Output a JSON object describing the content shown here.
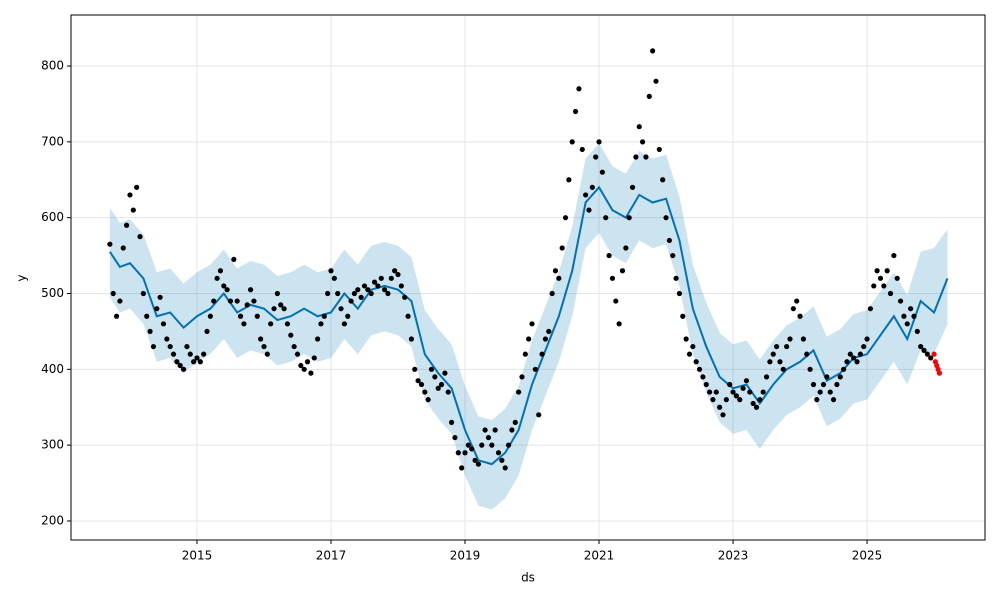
{
  "chart_data": {
    "type": "forecast",
    "xlabel": "ds",
    "ylabel": "y",
    "xlim": [
      2013.12,
      2026.76
    ],
    "ylim": [
      174.9,
      867.3
    ],
    "xticks": [
      2015,
      2017,
      2019,
      2021,
      2023,
      2025
    ],
    "yticks": [
      200,
      300,
      400,
      500,
      600,
      700,
      800
    ],
    "grid": true,
    "observed": {
      "color": "#000000",
      "x": [
        2013.7,
        2013.75,
        2013.8,
        2013.85,
        2013.9,
        2013.95,
        2014.0,
        2014.05,
        2014.1,
        2014.15,
        2014.2,
        2014.25,
        2014.3,
        2014.35,
        2014.4,
        2014.45,
        2014.5,
        2014.55,
        2014.6,
        2014.65,
        2014.7,
        2014.75,
        2014.8,
        2014.85,
        2014.9,
        2014.95,
        2015.0,
        2015.05,
        2015.1,
        2015.15,
        2015.2,
        2015.25,
        2015.3,
        2015.35,
        2015.4,
        2015.45,
        2015.5,
        2015.55,
        2015.6,
        2015.65,
        2015.7,
        2015.75,
        2015.8,
        2015.85,
        2015.9,
        2015.95,
        2016.0,
        2016.05,
        2016.1,
        2016.15,
        2016.2,
        2016.25,
        2016.3,
        2016.35,
        2016.4,
        2016.45,
        2016.5,
        2016.55,
        2016.6,
        2016.65,
        2016.7,
        2016.75,
        2016.8,
        2016.85,
        2016.9,
        2016.95,
        2017.0,
        2017.05,
        2017.1,
        2017.15,
        2017.2,
        2017.25,
        2017.3,
        2017.35,
        2017.4,
        2017.45,
        2017.5,
        2017.55,
        2017.6,
        2017.65,
        2017.7,
        2017.75,
        2017.8,
        2017.85,
        2017.9,
        2017.95,
        2018.0,
        2018.05,
        2018.1,
        2018.15,
        2018.2,
        2018.25,
        2018.3,
        2018.35,
        2018.4,
        2018.45,
        2018.5,
        2018.55,
        2018.6,
        2018.65,
        2018.7,
        2018.75,
        2018.8,
        2018.85,
        2018.9,
        2018.95,
        2019.0,
        2019.05,
        2019.1,
        2019.15,
        2019.2,
        2019.25,
        2019.3,
        2019.35,
        2019.4,
        2019.45,
        2019.5,
        2019.55,
        2019.6,
        2019.65,
        2019.7,
        2019.75,
        2019.8,
        2019.85,
        2019.9,
        2019.95,
        2020.0,
        2020.05,
        2020.1,
        2020.15,
        2020.2,
        2020.25,
        2020.3,
        2020.35,
        2020.4,
        2020.45,
        2020.5,
        2020.55,
        2020.6,
        2020.65,
        2020.7,
        2020.75,
        2020.8,
        2020.85,
        2020.9,
        2020.95,
        2021.0,
        2021.05,
        2021.1,
        2021.15,
        2021.2,
        2021.25,
        2021.3,
        2021.35,
        2021.4,
        2021.45,
        2021.5,
        2021.55,
        2021.6,
        2021.65,
        2021.7,
        2021.75,
        2021.8,
        2021.85,
        2021.9,
        2021.95,
        2022.0,
        2022.05,
        2022.1,
        2022.15,
        2022.2,
        2022.25,
        2022.3,
        2022.35,
        2022.4,
        2022.45,
        2022.5,
        2022.55,
        2022.6,
        2022.65,
        2022.7,
        2022.75,
        2022.8,
        2022.85,
        2022.9,
        2022.95,
        2023.0,
        2023.05,
        2023.1,
        2023.15,
        2023.2,
        2023.25,
        2023.3,
        2023.35,
        2023.4,
        2023.45,
        2023.5,
        2023.55,
        2023.6,
        2023.65,
        2023.7,
        2023.75,
        2023.8,
        2023.85,
        2023.9,
        2023.95,
        2024.0,
        2024.05,
        2024.1,
        2024.15,
        2024.2,
        2024.25,
        2024.3,
        2024.35,
        2024.4,
        2024.45,
        2024.5,
        2024.55,
        2024.6,
        2024.65,
        2024.7,
        2024.75,
        2024.8,
        2024.85,
        2024.9,
        2024.95,
        2025.0,
        2025.05,
        2025.1,
        2025.15,
        2025.2,
        2025.25,
        2025.3,
        2025.35,
        2025.4,
        2025.45,
        2025.5,
        2025.55,
        2025.6,
        2025.65,
        2025.7,
        2025.75,
        2025.8,
        2025.85,
        2025.9,
        2025.95
      ],
      "values": [
        565,
        500,
        470,
        490,
        560,
        590,
        630,
        610,
        640,
        575,
        500,
        470,
        450,
        430,
        480,
        495,
        460,
        440,
        430,
        420,
        410,
        405,
        400,
        430,
        420,
        410,
        415,
        410,
        420,
        450,
        470,
        490,
        520,
        530,
        510,
        505,
        490,
        545,
        490,
        470,
        460,
        485,
        505,
        490,
        470,
        440,
        430,
        420,
        460,
        480,
        500,
        485,
        480,
        460,
        445,
        430,
        420,
        405,
        400,
        410,
        395,
        415,
        440,
        460,
        470,
        500,
        530,
        520,
        500,
        480,
        460,
        470,
        490,
        500,
        505,
        495,
        510,
        505,
        500,
        515,
        510,
        520,
        505,
        500,
        520,
        530,
        525,
        510,
        495,
        470,
        440,
        400,
        385,
        380,
        370,
        360,
        400,
        390,
        375,
        380,
        395,
        370,
        330,
        310,
        290,
        270,
        290,
        300,
        295,
        280,
        275,
        300,
        320,
        310,
        300,
        320,
        290,
        280,
        270,
        300,
        320,
        330,
        370,
        390,
        420,
        440,
        460,
        400,
        340,
        420,
        440,
        450,
        500,
        530,
        520,
        560,
        600,
        650,
        700,
        740,
        770,
        690,
        630,
        610,
        640,
        680,
        700,
        660,
        600,
        550,
        520,
        490,
        460,
        530,
        560,
        600,
        640,
        680,
        720,
        700,
        680,
        760,
        820,
        780,
        690,
        650,
        600,
        570,
        550,
        520,
        500,
        470,
        440,
        420,
        430,
        410,
        400,
        390,
        380,
        370,
        360,
        370,
        350,
        340,
        360,
        380,
        370,
        365,
        360,
        375,
        385,
        370,
        355,
        350,
        360,
        370,
        390,
        410,
        420,
        430,
        410,
        400,
        430,
        440,
        480,
        490,
        470,
        440,
        420,
        400,
        380,
        360,
        370,
        380,
        390,
        370,
        360,
        380,
        390,
        400,
        410,
        420,
        415,
        410,
        420,
        430,
        440,
        480,
        510,
        530,
        520,
        510,
        530,
        500,
        550,
        520,
        490,
        470,
        460,
        480,
        470,
        450,
        430,
        425,
        420,
        415
      ]
    },
    "holdout": {
      "color": "#ff0000",
      "x": [
        2026.0,
        2026.02,
        2026.04,
        2026.06,
        2026.08
      ],
      "values": [
        420,
        410,
        405,
        400,
        395
      ]
    },
    "forecast": {
      "color": "#0072b2",
      "x": [
        2013.7,
        2013.85,
        2014.0,
        2014.2,
        2014.4,
        2014.6,
        2014.8,
        2015.0,
        2015.2,
        2015.4,
        2015.6,
        2015.8,
        2016.0,
        2016.2,
        2016.4,
        2016.6,
        2016.8,
        2017.0,
        2017.2,
        2017.4,
        2017.6,
        2017.8,
        2018.0,
        2018.2,
        2018.4,
        2018.6,
        2018.8,
        2019.0,
        2019.2,
        2019.4,
        2019.6,
        2019.8,
        2020.0,
        2020.2,
        2020.4,
        2020.6,
        2020.8,
        2021.0,
        2021.2,
        2021.4,
        2021.6,
        2021.8,
        2022.0,
        2022.2,
        2022.4,
        2022.6,
        2022.8,
        2023.0,
        2023.2,
        2023.4,
        2023.6,
        2023.8,
        2024.0,
        2024.2,
        2024.4,
        2024.6,
        2024.8,
        2025.0,
        2025.2,
        2025.4,
        2025.6,
        2025.8,
        2026.0,
        2026.2
      ],
      "values": [
        555,
        535,
        540,
        520,
        470,
        475,
        455,
        470,
        480,
        500,
        475,
        485,
        480,
        465,
        470,
        480,
        470,
        475,
        500,
        480,
        505,
        510,
        505,
        490,
        420,
        395,
        375,
        320,
        280,
        275,
        290,
        320,
        380,
        425,
        470,
        530,
        620,
        640,
        610,
        600,
        630,
        620,
        625,
        570,
        480,
        430,
        390,
        375,
        380,
        355,
        380,
        400,
        410,
        425,
        385,
        395,
        415,
        420,
        445,
        470,
        440,
        490,
        475,
        520
      ],
      "upper": [
        613,
        593,
        598,
        578,
        528,
        533,
        513,
        528,
        538,
        558,
        533,
        543,
        538,
        523,
        528,
        538,
        528,
        533,
        558,
        538,
        563,
        568,
        563,
        548,
        478,
        453,
        433,
        378,
        338,
        333,
        348,
        378,
        438,
        483,
        528,
        588,
        678,
        698,
        668,
        658,
        688,
        678,
        683,
        628,
        538,
        488,
        448,
        433,
        438,
        413,
        438,
        458,
        468,
        483,
        443,
        453,
        473,
        478,
        503,
        528,
        498,
        555,
        560,
        585
      ],
      "lower": [
        495,
        475,
        480,
        460,
        410,
        415,
        395,
        410,
        420,
        440,
        415,
        425,
        420,
        405,
        410,
        420,
        410,
        415,
        440,
        420,
        445,
        450,
        445,
        430,
        360,
        335,
        315,
        260,
        220,
        215,
        230,
        260,
        320,
        365,
        410,
        470,
        560,
        580,
        550,
        540,
        570,
        560,
        565,
        510,
        420,
        370,
        330,
        315,
        320,
        295,
        320,
        340,
        350,
        365,
        325,
        335,
        355,
        360,
        385,
        410,
        380,
        425,
        420,
        460
      ]
    }
  }
}
